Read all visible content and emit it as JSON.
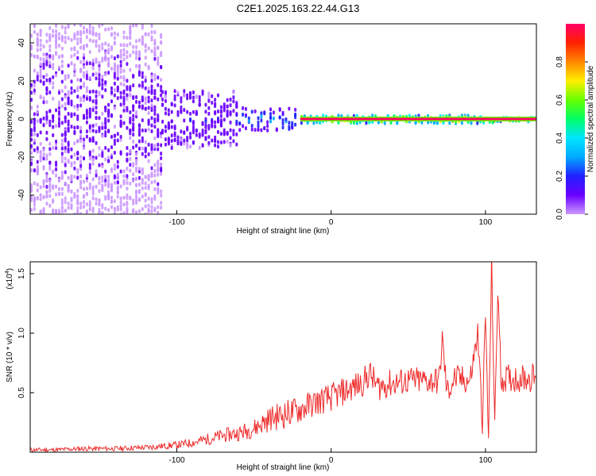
{
  "title": "C2E1.2025.163.22.44.G13",
  "colors": {
    "snr_line": "#ee2b2b",
    "axis": "#000000",
    "colormap": [
      "#ffffff",
      "#cc99ff",
      "#6a00ff",
      "#2020ff",
      "#00aaff",
      "#00e5ff",
      "#00ff66",
      "#66ff00",
      "#ffee00",
      "#ff8800",
      "#ff2200",
      "#ff0066"
    ]
  },
  "chart_data": [
    {
      "type": "heatmap",
      "title": "C2E1.2025.163.22.44.G13",
      "xlabel": "Height of straight line (km)",
      "ylabel": "Frequency (Hz)",
      "xlim": [
        -195,
        133
      ],
      "ylim": [
        -50,
        50
      ],
      "x_ticks": [
        -100,
        0,
        100
      ],
      "y_ticks": [
        -40,
        -20,
        0,
        20,
        40
      ],
      "colorbar": {
        "label": "Normalized spectral amplitude",
        "range": [
          0.0,
          1.0
        ],
        "ticks": [
          "0.0",
          "0.2",
          "0.4",
          "0.6",
          "0.8"
        ],
        "tick_values": [
          0.0,
          0.2,
          0.4,
          0.6,
          0.8
        ]
      },
      "description_bands": [
        {
          "x": [
            -195,
            -110
          ],
          "freq_halfwidth": 50,
          "amplitude": 0.08
        },
        {
          "x": [
            -110,
            -60
          ],
          "freq_halfwidth": 15,
          "amplitude": 0.15
        },
        {
          "x": [
            -60,
            -20
          ],
          "freq_halfwidth": 6,
          "amplitude": 0.3
        },
        {
          "x": [
            -20,
            105
          ],
          "freq_halfwidth": 2,
          "amplitude": 0.9
        },
        {
          "x": [
            105,
            133
          ],
          "freq_halfwidth": 1,
          "amplitude": 0.95
        }
      ]
    },
    {
      "type": "line",
      "xlabel": "Height of straight line (km)",
      "ylabel": "SNR (10 * v/v)",
      "y_multiplier": "(x10",
      "y_multiplier_exp": "4",
      "xlim": [
        -195,
        133
      ],
      "ylim": [
        0,
        1.6
      ],
      "x_ticks": [
        -100,
        0,
        100
      ],
      "y_ticks": [
        0.5,
        1.0,
        1.5
      ],
      "x": [
        -195,
        -180,
        -160,
        -140,
        -120,
        -100,
        -90,
        -80,
        -70,
        -60,
        -50,
        -40,
        -30,
        -20,
        -10,
        0,
        10,
        20,
        25,
        30,
        40,
        50,
        60,
        70,
        72,
        75,
        80,
        90,
        95,
        98,
        100,
        102,
        104,
        106,
        108,
        110,
        120,
        133
      ],
      "values": [
        0.02,
        0.02,
        0.03,
        0.03,
        0.04,
        0.06,
        0.08,
        0.11,
        0.14,
        0.16,
        0.2,
        0.28,
        0.32,
        0.36,
        0.42,
        0.46,
        0.52,
        0.58,
        0.66,
        0.55,
        0.58,
        0.6,
        0.6,
        0.6,
        0.95,
        0.5,
        0.62,
        0.6,
        1.0,
        0.25,
        1.15,
        0.1,
        1.6,
        0.2,
        1.4,
        0.62,
        0.62,
        0.63
      ]
    }
  ]
}
